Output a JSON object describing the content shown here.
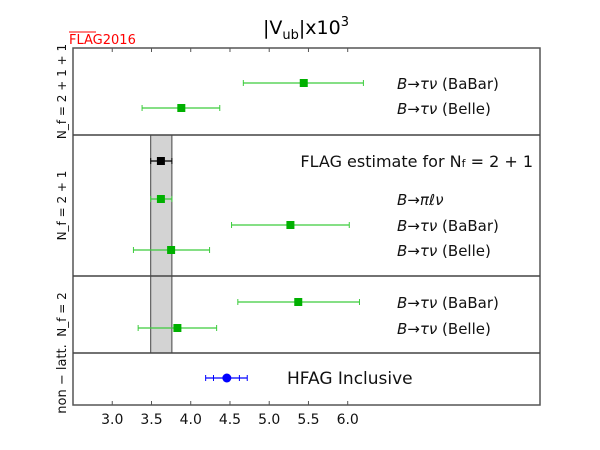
{
  "chart_data": {
    "type": "scatter",
    "title": "|V",
    "title_sub": "ub",
    "title_tail": "|x10",
    "title_sup": "3",
    "watermark": "FLAG2016",
    "xlim": [
      2.5,
      8.45
    ],
    "xticks": [
      "3.0",
      "3.5",
      "4.0",
      "4.5",
      "5.0",
      "5.5",
      "6.0"
    ],
    "xtick_values": [
      3.0,
      3.5,
      4.0,
      4.5,
      5.0,
      5.5,
      6.0
    ],
    "flag_band": [
      3.49,
      3.76
    ],
    "panels": [
      {
        "label": "N_f = 2 + 1 + 1",
        "label_main": "N",
        "label_sub": "f",
        "label_rest": " = 2 + 1 + 1",
        "rows": 3,
        "points": [
          {
            "name": "B→τν (BaBar)",
            "value": 5.44,
            "err_lo": 4.67,
            "err_hi": 6.2,
            "color": "#00b000",
            "marker": "square"
          },
          {
            "name": "B→τν (Belle)",
            "value": 3.88,
            "err_lo": 3.38,
            "err_hi": 4.37,
            "color": "#00b000",
            "marker": "square"
          }
        ]
      },
      {
        "label": "N_f = 2 + 1",
        "label_main": "N",
        "label_sub": "f",
        "label_rest": " = 2 + 1",
        "rows": 5,
        "estimate_label": "FLAG estimate for N",
        "estimate_sub": "f",
        "estimate_rest": " = 2 + 1",
        "points": [
          {
            "name": "FLAG estimate",
            "value": 3.62,
            "err_lo": 3.49,
            "err_hi": 3.76,
            "color": "#000000",
            "marker": "square",
            "hide_label": true
          },
          {
            "name": "B→πℓν",
            "value": 3.62,
            "err_lo": 3.49,
            "err_hi": 3.76,
            "color": "#00b000",
            "marker": "square"
          },
          {
            "name": "B→τν (BaBar)",
            "value": 5.27,
            "err_lo": 4.52,
            "err_hi": 6.02,
            "color": "#00b000",
            "marker": "square"
          },
          {
            "name": "B→τν (Belle)",
            "value": 3.75,
            "err_lo": 3.27,
            "err_hi": 4.24,
            "color": "#00b000",
            "marker": "square"
          }
        ]
      },
      {
        "label": "N_f = 2",
        "label_main": "N",
        "label_sub": "f",
        "label_rest": " = 2",
        "rows": 3,
        "points": [
          {
            "name": "B→τν (BaBar)",
            "value": 5.37,
            "err_lo": 4.6,
            "err_hi": 6.15,
            "color": "#00b000",
            "marker": "square"
          },
          {
            "name": "B→τν (Belle)",
            "value": 3.83,
            "err_lo": 3.33,
            "err_hi": 4.33,
            "color": "#00b000",
            "marker": "square"
          }
        ]
      },
      {
        "label": "non − latt.",
        "rows": 2,
        "points": [
          {
            "name": "HFAG Inclusive",
            "value": 4.46,
            "err_lo": 4.19,
            "err_hi": 4.72,
            "inner_lo": 4.29,
            "inner_hi": 4.62,
            "color": "#0000ff",
            "marker": "circle",
            "big_label": true
          }
        ]
      }
    ]
  }
}
